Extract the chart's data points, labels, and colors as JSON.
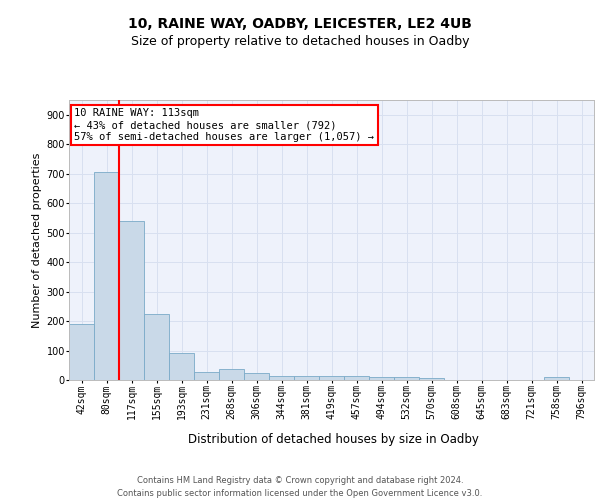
{
  "title1": "10, RAINE WAY, OADBY, LEICESTER, LE2 4UB",
  "title2": "Size of property relative to detached houses in Oadby",
  "xlabel": "Distribution of detached houses by size in Oadby",
  "ylabel": "Number of detached properties",
  "bar_color": "#c9d9e8",
  "bar_edge_color": "#7aaac8",
  "categories": [
    "42sqm",
    "80sqm",
    "117sqm",
    "155sqm",
    "193sqm",
    "231sqm",
    "268sqm",
    "306sqm",
    "344sqm",
    "381sqm",
    "419sqm",
    "457sqm",
    "494sqm",
    "532sqm",
    "570sqm",
    "608sqm",
    "645sqm",
    "683sqm",
    "721sqm",
    "758sqm",
    "796sqm"
  ],
  "values": [
    190,
    707,
    540,
    225,
    90,
    28,
    38,
    25,
    15,
    13,
    12,
    13,
    10,
    10,
    8,
    0,
    0,
    0,
    0,
    10,
    0
  ],
  "ylim": [
    0,
    950
  ],
  "yticks": [
    0,
    100,
    200,
    300,
    400,
    500,
    600,
    700,
    800,
    900
  ],
  "vline_position": 1.5,
  "annotation_text": "10 RAINE WAY: 113sqm\n← 43% of detached houses are smaller (792)\n57% of semi-detached houses are larger (1,057) →",
  "annotation_box_color": "white",
  "annotation_box_edge": "red",
  "vline_color": "red",
  "footer_line1": "Contains HM Land Registry data © Crown copyright and database right 2024.",
  "footer_line2": "Contains public sector information licensed under the Open Government Licence v3.0.",
  "grid_color": "#d8e0f0",
  "background_color": "#eef2fb",
  "title1_fontsize": 10,
  "title2_fontsize": 9,
  "xlabel_fontsize": 8.5,
  "ylabel_fontsize": 8,
  "tick_fontsize": 7,
  "annotation_fontsize": 7.5,
  "footer_fontsize": 6
}
